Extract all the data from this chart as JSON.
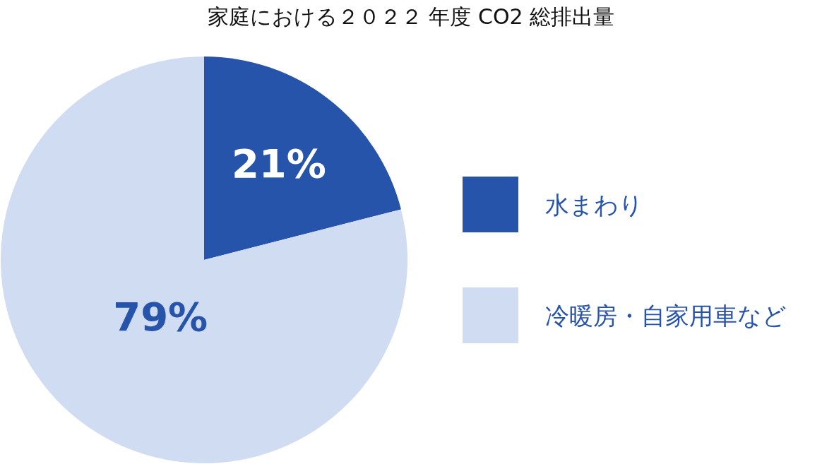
{
  "chart_data": {
    "type": "pie",
    "title": "家庭における２０２２ 年度 CO2 総排出量",
    "categories": [
      "水まわり",
      "冷暖房・自家用車など"
    ],
    "values": [
      21,
      79
    ],
    "colors": [
      "#2754ab",
      "#d0dcf2"
    ],
    "value_labels": [
      "21%",
      "79%"
    ],
    "legend": "right"
  }
}
